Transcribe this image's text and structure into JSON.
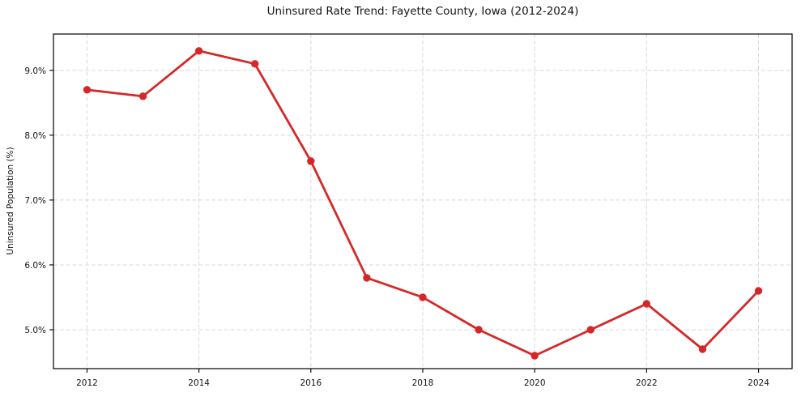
{
  "chart_data": {
    "type": "line",
    "title": "Uninsured Rate Trend: Fayette County, Iowa (2012-2024)",
    "xlabel": "",
    "ylabel": "Uninsured Population (%)",
    "x": [
      2012,
      2013,
      2014,
      2015,
      2016,
      2017,
      2018,
      2019,
      2020,
      2021,
      2022,
      2023,
      2024
    ],
    "values": [
      8.7,
      8.6,
      9.3,
      9.1,
      7.6,
      5.8,
      5.5,
      5.0,
      4.6,
      5.0,
      5.4,
      4.7,
      5.6
    ],
    "x_tick_values": [
      2012,
      2014,
      2016,
      2018,
      2020,
      2022,
      2024
    ],
    "x_tick_labels": [
      "2012",
      "2014",
      "2016",
      "2018",
      "2020",
      "2022",
      "2024"
    ],
    "y_tick_values": [
      5.0,
      6.0,
      7.0,
      8.0,
      9.0
    ],
    "y_tick_labels": [
      "5.0%",
      "6.0%",
      "7.0%",
      "8.0%",
      "9.0%"
    ],
    "xlim": [
      2011.4,
      2024.6
    ],
    "ylim": [
      4.4,
      9.56
    ],
    "grid": true,
    "grid_style": "dashed",
    "legend": false,
    "line_color": "#d62728",
    "marker": "circle"
  }
}
